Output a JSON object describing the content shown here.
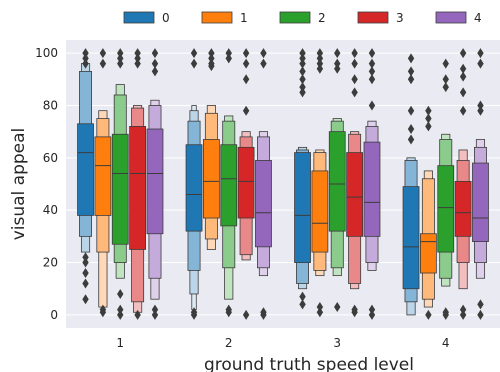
{
  "chart_data": {
    "type": "boxen",
    "xlabel": "ground truth speed level",
    "ylabel": "visual appeal",
    "categories": [
      "1",
      "2",
      "3",
      "4"
    ],
    "ylim": [
      -5,
      105
    ],
    "yticks": [
      0,
      20,
      40,
      60,
      80,
      100
    ],
    "grid": true,
    "legend": {
      "placement": "top",
      "entries": [
        "0",
        "1",
        "2",
        "3",
        "4"
      ]
    },
    "colors": [
      "#1f77b4",
      "#ff7f0e",
      "#2ca02c",
      "#d62728",
      "#9467bd"
    ],
    "background": "#eaeaf2",
    "series": [
      {
        "name": "0",
        "color": "#1f77b4",
        "boxes": [
          {
            "levels": [
              [
                38,
                73
              ],
              [
                30,
                93
              ],
              [
                24,
                96
              ]
            ],
            "median": 62,
            "outliers": [
              100,
              98,
              96,
              22,
              20,
              16,
              12,
              6
            ]
          },
          {
            "levels": [
              [
                32,
                65
              ],
              [
                17,
                74
              ],
              [
                8,
                78
              ],
              [
                2,
                80
              ]
            ],
            "median": 46,
            "outliers": [
              100,
              96,
              1,
              0
            ]
          },
          {
            "levels": [
              [
                20,
                62
              ],
              [
                12,
                63
              ],
              [
                10,
                64
              ]
            ],
            "median": 38,
            "outliers": [
              100,
              98,
              96,
              93,
              90,
              87,
              85,
              7,
              4
            ]
          },
          {
            "levels": [
              [
                10,
                49
              ],
              [
                5,
                59
              ],
              [
                0,
                60
              ]
            ],
            "median": 26,
            "outliers": [
              98,
              93,
              90,
              78,
              71,
              67
            ]
          }
        ]
      },
      {
        "name": "1",
        "color": "#ff7f0e",
        "boxes": [
          {
            "levels": [
              [
                38,
                68
              ],
              [
                24,
                75
              ],
              [
                3,
                78
              ]
            ],
            "median": 57,
            "outliers": [
              100,
              96,
              2,
              1
            ]
          },
          {
            "levels": [
              [
                37,
                67
              ],
              [
                29,
                77
              ],
              [
                25,
                80
              ]
            ],
            "median": 51,
            "outliers": [
              100,
              98,
              96,
              95
            ]
          },
          {
            "levels": [
              [
                24,
                55
              ],
              [
                17,
                62
              ],
              [
                15,
                63
              ]
            ],
            "median": 35,
            "outliers": [
              100,
              98,
              96,
              94,
              3,
              1
            ]
          },
          {
            "levels": [
              [
                16,
                31
              ],
              [
                6,
                52
              ],
              [
                3,
                55
              ]
            ],
            "median": 28,
            "outliers": [
              78,
              75,
              72,
              0
            ]
          }
        ]
      },
      {
        "name": "2",
        "color": "#2ca02c",
        "boxes": [
          {
            "levels": [
              [
                27,
                69
              ],
              [
                20,
                84
              ],
              [
                14,
                88
              ]
            ],
            "median": 54,
            "outliers": [
              100,
              98,
              96,
              8,
              2,
              0
            ]
          },
          {
            "levels": [
              [
                34,
                65
              ],
              [
                18,
                74
              ],
              [
                6,
                76
              ]
            ],
            "median": 52,
            "outliers": [
              100,
              98,
              2,
              1
            ]
          },
          {
            "levels": [
              [
                32,
                70
              ],
              [
                18,
                74
              ],
              [
                15,
                75
              ]
            ],
            "median": 50,
            "outliers": [
              100,
              96,
              94,
              3
            ]
          },
          {
            "levels": [
              [
                24,
                57
              ],
              [
                14,
                67
              ],
              [
                11,
                69
              ]
            ],
            "median": 41,
            "outliers": [
              96,
              90,
              87,
              1,
              0
            ]
          }
        ]
      },
      {
        "name": "3",
        "color": "#d62728",
        "boxes": [
          {
            "levels": [
              [
                25,
                72
              ],
              [
                5,
                79
              ],
              [
                1,
                80
              ]
            ],
            "median": 54,
            "outliers": [
              100,
              98,
              96,
              0
            ]
          },
          {
            "levels": [
              [
                37,
                64
              ],
              [
                23,
                68
              ],
              [
                21,
                70
              ]
            ],
            "median": 51,
            "outliers": [
              100,
              96,
              90,
              78,
              0
            ]
          },
          {
            "levels": [
              [
                30,
                62
              ],
              [
                12,
                69
              ],
              [
                10,
                70
              ]
            ],
            "median": 45,
            "outliers": [
              100,
              96,
              90,
              85,
              2,
              1
            ]
          },
          {
            "levels": [
              [
                30,
                51
              ],
              [
                20,
                59
              ],
              [
                10,
                63
              ]
            ],
            "median": 39,
            "outliers": [
              100,
              94,
              91,
              85,
              78,
              2,
              0
            ]
          }
        ]
      },
      {
        "name": "4",
        "color": "#9467bd",
        "boxes": [
          {
            "levels": [
              [
                31,
                71
              ],
              [
                14,
                80
              ],
              [
                6,
                82
              ]
            ],
            "median": 54,
            "outliers": [
              100,
              96,
              93,
              2,
              0
            ]
          },
          {
            "levels": [
              [
                26,
                59
              ],
              [
                18,
                68
              ],
              [
                15,
                70
              ]
            ],
            "median": 39,
            "outliers": [
              100,
              96,
              1,
              0
            ]
          },
          {
            "levels": [
              [
                30,
                66
              ],
              [
                20,
                72
              ],
              [
                17,
                74
              ]
            ],
            "median": 43,
            "outliers": [
              100,
              96,
              93,
              90,
              80,
              2,
              0
            ]
          },
          {
            "levels": [
              [
                28,
                58
              ],
              [
                20,
                64
              ],
              [
                14,
                67
              ]
            ],
            "median": 37,
            "outliers": [
              100,
              96,
              80,
              78,
              4,
              0
            ]
          }
        ]
      }
    ]
  }
}
